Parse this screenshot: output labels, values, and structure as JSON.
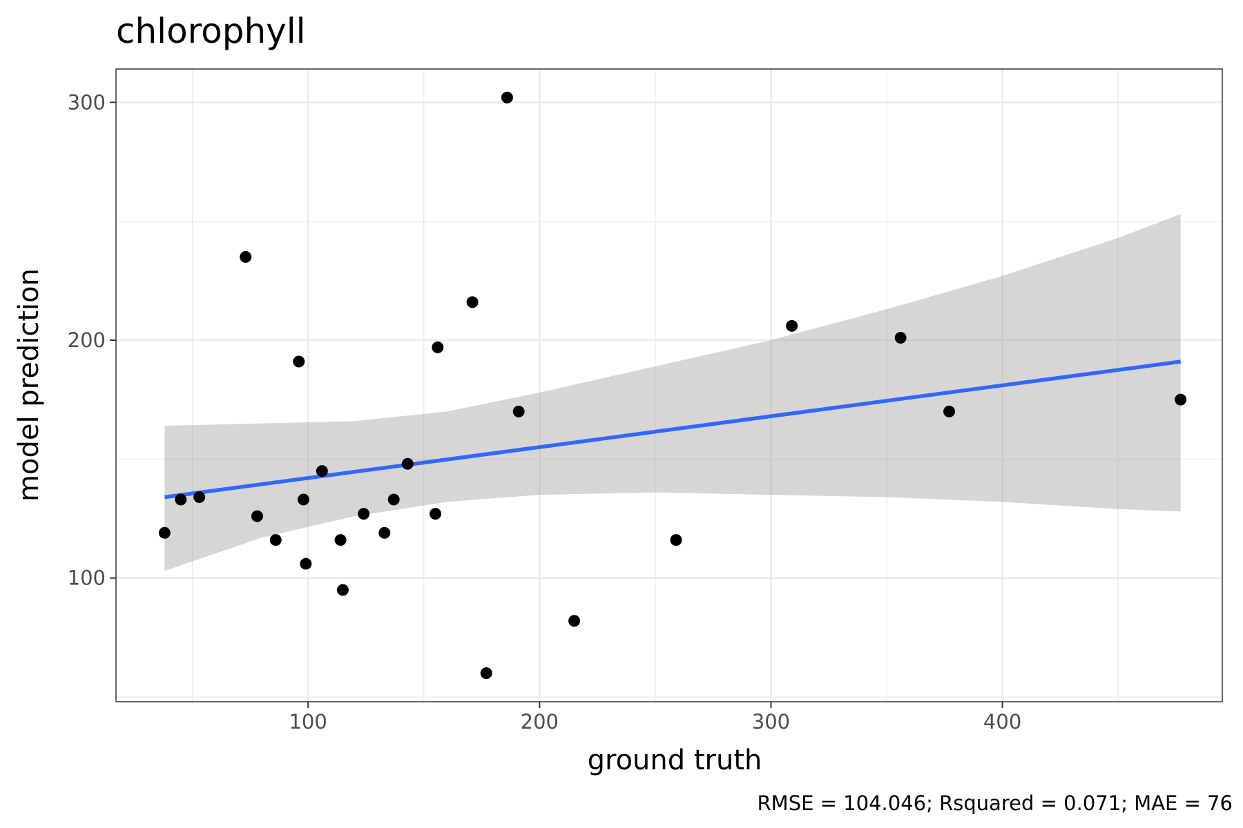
{
  "chart_data": {
    "type": "scatter",
    "title": "chlorophyll",
    "xlabel": "ground truth",
    "ylabel": "model prediction",
    "caption": "RMSE = 104.046; Rsquared = 0.071; MAE = 76",
    "xlim": [
      17,
      495
    ],
    "ylim": [
      48,
      314
    ],
    "x_ticks": [
      100,
      200,
      300,
      400
    ],
    "y_ticks": [
      100,
      200,
      300
    ],
    "x_tick_labels": [
      "100",
      "200",
      "300",
      "400"
    ],
    "y_tick_labels": [
      "100",
      "200",
      "300"
    ],
    "grid": true,
    "point_color": "#000000",
    "fit_color": "#3366ff",
    "band_color": "#999999",
    "points": [
      {
        "x": 38,
        "y": 119
      },
      {
        "x": 45,
        "y": 133
      },
      {
        "x": 53,
        "y": 134
      },
      {
        "x": 73,
        "y": 235
      },
      {
        "x": 78,
        "y": 126
      },
      {
        "x": 86,
        "y": 116
      },
      {
        "x": 96,
        "y": 191
      },
      {
        "x": 98,
        "y": 133
      },
      {
        "x": 99,
        "y": 106
      },
      {
        "x": 106,
        "y": 145
      },
      {
        "x": 114,
        "y": 116
      },
      {
        "x": 115,
        "y": 95
      },
      {
        "x": 124,
        "y": 127
      },
      {
        "x": 133,
        "y": 119
      },
      {
        "x": 137,
        "y": 133
      },
      {
        "x": 143,
        "y": 148
      },
      {
        "x": 155,
        "y": 127
      },
      {
        "x": 156,
        "y": 197
      },
      {
        "x": 171,
        "y": 216
      },
      {
        "x": 177,
        "y": 60
      },
      {
        "x": 186,
        "y": 302
      },
      {
        "x": 191,
        "y": 170
      },
      {
        "x": 215,
        "y": 82
      },
      {
        "x": 259,
        "y": 116
      },
      {
        "x": 309,
        "y": 206
      },
      {
        "x": 356,
        "y": 201
      },
      {
        "x": 377,
        "y": 170
      },
      {
        "x": 477,
        "y": 175
      }
    ],
    "fit_line": {
      "x": [
        38,
        477
      ],
      "y": [
        134,
        191
      ]
    },
    "confidence_band": {
      "x": [
        38,
        80,
        120,
        160,
        200,
        250,
        300,
        350,
        400,
        450,
        477
      ],
      "lower": [
        103,
        117,
        126,
        132,
        135,
        136,
        135,
        134,
        132,
        129,
        128
      ],
      "upper": [
        164,
        165,
        166,
        170,
        178,
        189,
        200,
        213,
        227,
        243,
        253
      ]
    }
  }
}
